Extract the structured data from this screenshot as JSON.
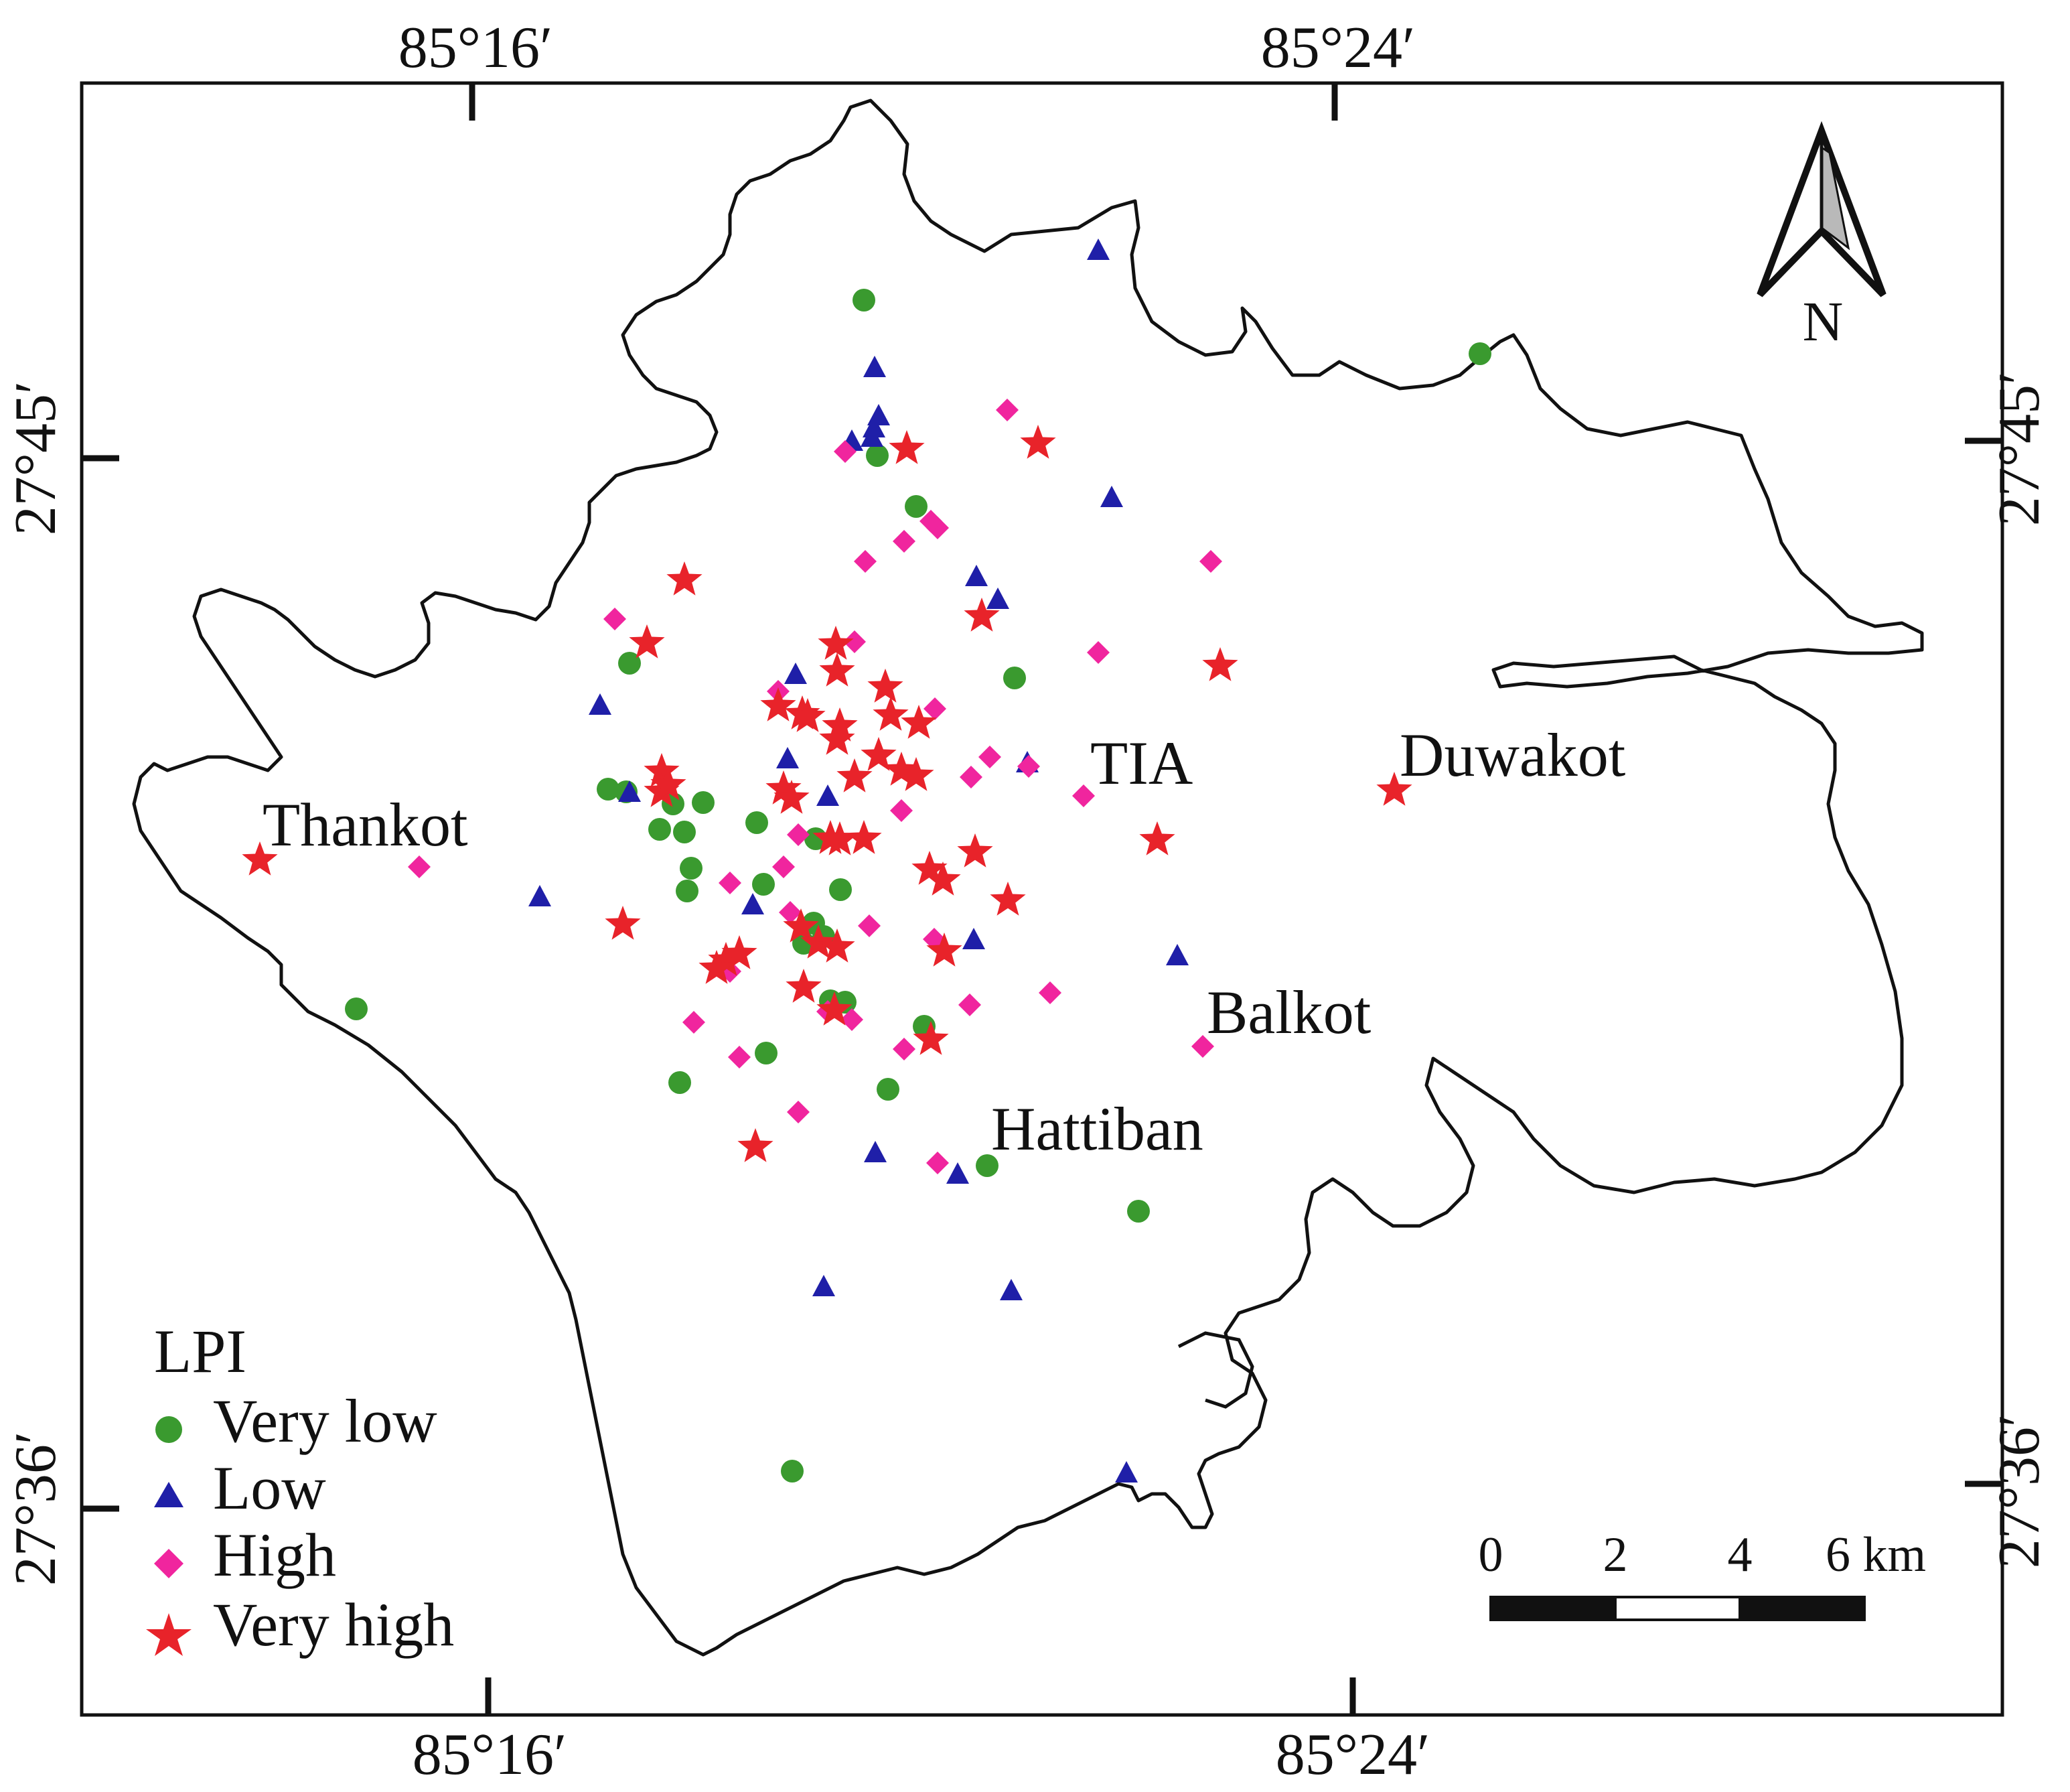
{
  "map": {
    "coordinate_labels": {
      "top": [
        "85°16′",
        "85°24′"
      ],
      "bottom": [
        "85°16′",
        "85°24′"
      ],
      "left": [
        "27°45′",
        "27°36′"
      ],
      "right": [
        "27°45′",
        "27°36′"
      ]
    },
    "places": [
      "Thankot",
      "TIA",
      "Duwakot",
      "Balkot",
      "Hattiban"
    ],
    "north_arrow_label": "N",
    "scale_bar": {
      "labels": [
        "0",
        "2",
        "4",
        "6 km"
      ]
    },
    "legend": {
      "title": "LPI",
      "items": [
        {
          "label": "Very low",
          "symbol": "circle",
          "color": "#3a9a2f"
        },
        {
          "label": "Low",
          "symbol": "triangle",
          "color": "#1f1fa8"
        },
        {
          "label": "High",
          "symbol": "diamond",
          "color": "#f0259e"
        },
        {
          "label": "Very high",
          "symbol": "star",
          "color": "#e8232a"
        }
      ]
    },
    "colors": {
      "very_low": "#3a9a2f",
      "low": "#1f1fa8",
      "high": "#f0259e",
      "very_high": "#e8232a",
      "outline": "#111111"
    }
  }
}
